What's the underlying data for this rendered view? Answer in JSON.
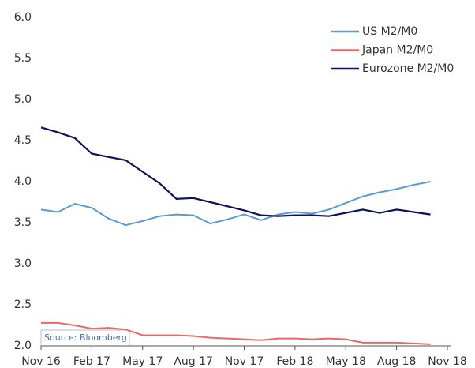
{
  "chart_data": {
    "type": "line",
    "x": [
      0,
      1,
      2,
      3,
      4,
      5,
      6,
      7,
      8,
      9,
      10,
      11,
      12,
      13,
      14,
      15,
      16,
      17,
      18,
      19,
      20,
      21,
      22,
      23
    ],
    "xlim": [
      0,
      24
    ],
    "xticks": [
      {
        "value": 0,
        "label": "Nov 16"
      },
      {
        "value": 3,
        "label": "Feb 17"
      },
      {
        "value": 6,
        "label": "May 17"
      },
      {
        "value": 9,
        "label": "Aug 17"
      },
      {
        "value": 12,
        "label": "Nov 17"
      },
      {
        "value": 15,
        "label": "Feb 18"
      },
      {
        "value": 18,
        "label": "May 18"
      },
      {
        "value": 21,
        "label": "Aug 18"
      },
      {
        "value": 24,
        "label": "Nov 18"
      }
    ],
    "ylim": [
      2,
      6
    ],
    "yticks": [
      {
        "value": 2,
        "label": "2.0"
      },
      {
        "value": 2.5,
        "label": "2.5"
      },
      {
        "value": 3,
        "label": "3.0"
      },
      {
        "value": 3.5,
        "label": "3.5"
      },
      {
        "value": 4,
        "label": "4.0"
      },
      {
        "value": 4.5,
        "label": "4.5"
      },
      {
        "value": 5,
        "label": "5.0"
      },
      {
        "value": 5.5,
        "label": "5.5"
      },
      {
        "value": 6,
        "label": "6.0"
      }
    ],
    "series": [
      {
        "name": "US M2/M0",
        "color": "#5b9bd5",
        "values": [
          3.66,
          3.63,
          3.73,
          3.68,
          3.55,
          3.47,
          3.52,
          3.58,
          3.6,
          3.59,
          3.49,
          3.54,
          3.6,
          3.53,
          3.6,
          3.63,
          3.61,
          3.66,
          3.74,
          3.82,
          3.87,
          3.91,
          3.96,
          4.0
        ]
      },
      {
        "name": "Japan M2/M0",
        "color": "#e8696a",
        "values": [
          2.28,
          2.28,
          2.25,
          2.21,
          2.22,
          2.2,
          2.13,
          2.13,
          2.13,
          2.12,
          2.1,
          2.09,
          2.08,
          2.07,
          2.09,
          2.09,
          2.08,
          2.09,
          2.08,
          2.04,
          2.04,
          2.04,
          2.03,
          2.02
        ]
      },
      {
        "name": "Eurozone M2/M0",
        "color": "#0f1259",
        "values": [
          4.66,
          4.6,
          4.53,
          4.34,
          4.3,
          4.26,
          4.12,
          3.98,
          3.79,
          3.8,
          3.75,
          3.7,
          3.65,
          3.59,
          3.58,
          3.59,
          3.59,
          3.58,
          3.62,
          3.66,
          3.62,
          3.66,
          3.63,
          3.6
        ]
      }
    ],
    "legend": "upper right",
    "annotation": "Source: Bloomberg"
  }
}
